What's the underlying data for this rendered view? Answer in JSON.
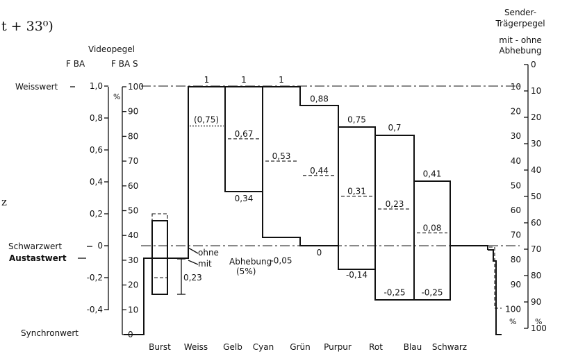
{
  "header": {
    "formula": "t + 33⁰)",
    "left_fragment": "z"
  },
  "left_axis": {
    "title": "Videopegel",
    "col_fba": "F BA",
    "col_fbas": "F BA S",
    "percent_unit": "%",
    "fba_ticks": [
      "1,0",
      "0,8",
      "0,6",
      "0,4",
      "0,2",
      "0",
      "-0,2",
      "-0,4"
    ],
    "fbas_ticks": [
      "100",
      "90",
      "80",
      "70",
      "60",
      "50",
      "40",
      "30",
      "20",
      "10",
      "0"
    ]
  },
  "right_axis": {
    "title_lines": [
      "Sender-",
      "Trägerpegel",
      "mit - ohne",
      "Abhebung"
    ],
    "mit_ticks": [
      "10",
      "20",
      "30",
      "40",
      "50",
      "60",
      "70",
      "80",
      "90",
      "100"
    ],
    "ohne_ticks": [
      "0",
      "10",
      "20",
      "30",
      "40",
      "50",
      "60",
      "70",
      "80",
      "90",
      "100"
    ],
    "unit": "%"
  },
  "levels": {
    "weisswert": "Weisswert",
    "schwarzwert": "Schwarzwert",
    "austastwert": "Austastwert",
    "synchronwert": "Synchronwert"
  },
  "annotations": {
    "ohne": "ohne",
    "mit": "mit",
    "abhebung": "Abhebung",
    "abhebung_pct": "(5%)",
    "burst_amplitude": "0,23"
  },
  "chart_data": {
    "type": "bar",
    "categories": [
      "Burst",
      "Weiss",
      "Gelb",
      "Cyan",
      "Grün",
      "Purpur",
      "Rot",
      "Blau",
      "Schwarz"
    ],
    "luminance_labels": [
      "",
      "1",
      "0,67",
      "0,53",
      "0,44",
      "0,31",
      "0,23",
      "0,08",
      "0"
    ],
    "top_labels": [
      "",
      "1",
      "1",
      "1",
      "0,88",
      "0,75",
      "0,7",
      "0,41",
      ""
    ],
    "bottom_labels": [
      "",
      "",
      "0,34",
      "-0,05",
      "0",
      "-0,14",
      "-0,25",
      "-0,25",
      ""
    ],
    "paren_label": "(0,75)",
    "series": [
      {
        "name": "",
        "values": [
          0.23,
          1.0,
          1.0,
          1.0,
          0.88,
          0.75,
          0.7,
          0.41,
          0.0
        ]
      },
      {
        "name": "",
        "values": [
          -0.23,
          1.0,
          0.34,
          -0.05,
          0.0,
          -0.14,
          -0.25,
          -0.25,
          0.0
        ]
      },
      {
        "name": "",
        "values": [
          0.0,
          1.0,
          0.67,
          0.53,
          0.44,
          0.31,
          0.23,
          0.08,
          0.0
        ]
      }
    ],
    "ylim": [
      -0.43,
      1.0
    ]
  }
}
